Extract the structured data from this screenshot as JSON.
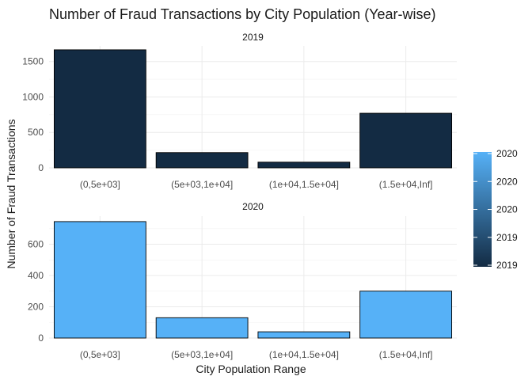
{
  "chart_data": {
    "type": "bar",
    "title": "Number of Fraud Transactions by City Population (Year-wise)",
    "xlabel": "City Population Range",
    "ylabel": "Number of Fraud Transactions",
    "categories": [
      "(0,5e+03]",
      "(5e+03,1e+04]",
      "(1e+04,1.5e+04]",
      "(1.5e+04,Inf]"
    ],
    "grid": true,
    "legend_position": "right",
    "legend": {
      "type": "colorbar",
      "labels": [
        "2020",
        "2020",
        "2020",
        "2019",
        "2019"
      ],
      "color_low": "#132B43",
      "color_high": "#56B1F7"
    },
    "facets": [
      {
        "label": "2019",
        "color": "#132B43",
        "values": [
          1665,
          215,
          80,
          770
        ],
        "ylim": [
          0,
          1720
        ],
        "yticks": [
          0,
          500,
          1000,
          1500
        ]
      },
      {
        "label": "2020",
        "color": "#56B1F7",
        "values": [
          745,
          130,
          40,
          300
        ],
        "ylim": [
          0,
          780
        ],
        "yticks": [
          0,
          200,
          400,
          600
        ]
      }
    ]
  }
}
